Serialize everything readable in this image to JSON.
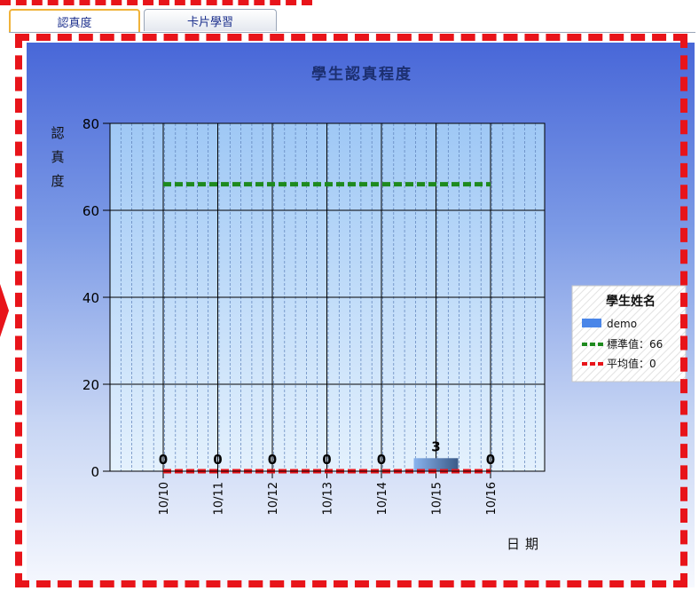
{
  "tabs": [
    {
      "label": "認真度",
      "active": true
    },
    {
      "label": "卡片學習",
      "active": false
    }
  ],
  "chart_data": {
    "type": "bar",
    "title": "學生認真程度",
    "ylabel": "認真度",
    "xlabel": "日期",
    "categories": [
      "10/10",
      "10/11",
      "10/12",
      "10/13",
      "10/14",
      "10/15",
      "10/16"
    ],
    "yticks": [
      0,
      20,
      40,
      60,
      80
    ],
    "ylim": [
      0,
      80
    ],
    "grid": true,
    "legend_title": "學生姓名",
    "legend_position": "right",
    "series": [
      {
        "name": "demo",
        "type": "bar",
        "color": "#4a86e8",
        "values": [
          0,
          0,
          0,
          0,
          0,
          3,
          0
        ]
      }
    ],
    "reference_lines": [
      {
        "name": "標準值：66",
        "value": 66,
        "color": "#1e8a1e",
        "style": "dashed"
      },
      {
        "name": "平均值：0",
        "value": 0,
        "color": "#e8141a",
        "style": "dashed"
      }
    ]
  }
}
